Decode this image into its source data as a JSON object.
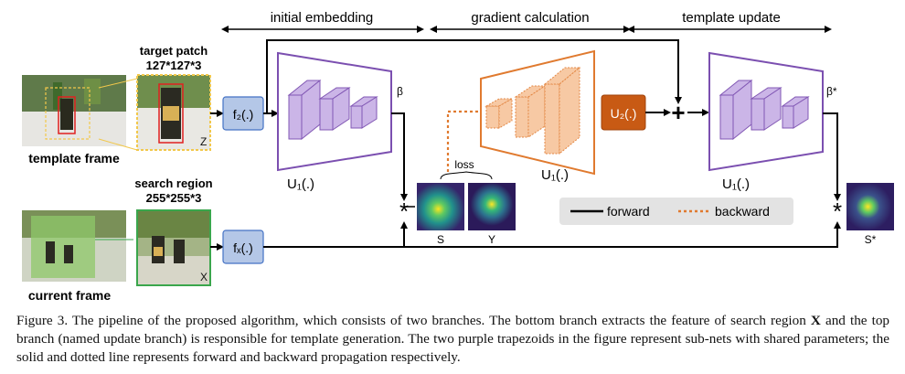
{
  "phases": {
    "initial_embedding": "initial embedding",
    "gradient_calculation": "gradient calculation",
    "template_update": "template update"
  },
  "images": {
    "template_frame": "template frame",
    "target_patch_title": "target patch",
    "target_patch_size": "127*127*3",
    "target_patch_symbol": "Z",
    "current_frame": "current frame",
    "search_region_title": "search region",
    "search_region_size": "255*255*3",
    "search_region_symbol": "X"
  },
  "blocks": {
    "f2": "f₂(.)",
    "fx": "fₓ(.)",
    "u1": "U₁(.)",
    "u2": "U₂(.)",
    "beta": "β",
    "beta_star": "β*",
    "loss": "loss",
    "s": "S",
    "y": "Y",
    "s_star": "S*",
    "plus": "+",
    "star": "*"
  },
  "legend": {
    "forward": "forward",
    "backward": "backward"
  },
  "colors": {
    "purple": "#7b4fb0",
    "purple_fill": "#c9b2e6",
    "orange": "#e07a2f",
    "orange_fill": "#f7c49b",
    "u2_fill": "#c85a14",
    "f_box": "#b4c7e7",
    "f_border": "#4472c4",
    "patch_yellow": "#f2c84b",
    "patch_green": "#3aa64c"
  },
  "caption": {
    "lead": "Figure 3. The pipeline of the proposed algorithm, which consists of two branches. The bottom branch extracts the feature of search region",
    "bold_symbol": "X",
    "rest": "and the top branch (named update branch) is responsible for template generation. The two purple trapezoids in the figure represent sub-nets with shared parameters; the solid and dotted line represents forward and backward propagation respectively."
  }
}
